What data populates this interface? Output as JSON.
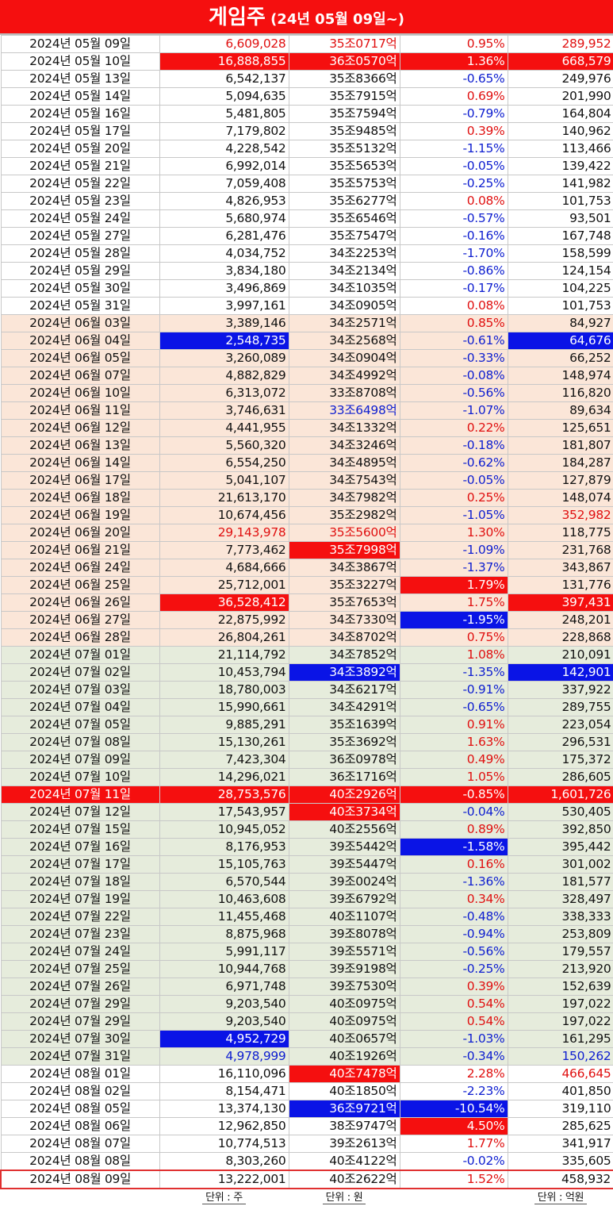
{
  "title": {
    "main": "게임주",
    "sub": " (24년 05월 09일~)"
  },
  "units": {
    "col1": "단위 : 주",
    "col2": "단위 : 원",
    "col4": "단위 : 억원"
  },
  "rows": [
    {
      "date": "2024년 05월 09일",
      "volume": "6,609,028",
      "mcap": "35조0717억",
      "change": "0.95%",
      "amount": "289,952",
      "m": "m5",
      "c1": "red",
      "c2": "red",
      "c3": "red",
      "c4": "red"
    },
    {
      "date": "2024년 05월 10일",
      "volume": "16,888,855",
      "mcap": "36조0570억",
      "change": "1.36%",
      "amount": "668,579",
      "m": "m5",
      "c1": "bgred",
      "c2": "bgred",
      "c3": "bgred",
      "c4": "bgred"
    },
    {
      "date": "2024년 05월 13일",
      "volume": "6,542,137",
      "mcap": "35조8366억",
      "change": "-0.65%",
      "amount": "249,976",
      "m": "m5",
      "c3": "blue"
    },
    {
      "date": "2024년 05월 14일",
      "volume": "5,094,635",
      "mcap": "35조7915억",
      "change": "0.69%",
      "amount": "201,990",
      "m": "m5",
      "c3": "red"
    },
    {
      "date": "2024년 05월 16일",
      "volume": "5,481,805",
      "mcap": "35조7594억",
      "change": "-0.79%",
      "amount": "164,804",
      "m": "m5",
      "c3": "blue"
    },
    {
      "date": "2024년 05월 17일",
      "volume": "7,179,802",
      "mcap": "35조9485억",
      "change": "0.39%",
      "amount": "140,962",
      "m": "m5",
      "c3": "red"
    },
    {
      "date": "2024년 05월 20일",
      "volume": "4,228,542",
      "mcap": "35조5132억",
      "change": "-1.15%",
      "amount": "113,466",
      "m": "m5",
      "c3": "blue"
    },
    {
      "date": "2024년 05월 21일",
      "volume": "6,992,014",
      "mcap": "35조5653억",
      "change": "-0.05%",
      "amount": "139,422",
      "m": "m5",
      "c3": "blue"
    },
    {
      "date": "2024년 05월 22일",
      "volume": "7,059,408",
      "mcap": "35조5753억",
      "change": "-0.25%",
      "amount": "141,982",
      "m": "m5",
      "c3": "blue"
    },
    {
      "date": "2024년 05월 23일",
      "volume": "4,826,953",
      "mcap": "35조6277억",
      "change": "0.08%",
      "amount": "101,753",
      "m": "m5",
      "c3": "red"
    },
    {
      "date": "2024년 05월 24일",
      "volume": "5,680,974",
      "mcap": "35조6546억",
      "change": "-0.57%",
      "amount": "93,501",
      "m": "m5",
      "c3": "blue"
    },
    {
      "date": "2024년 05월 27일",
      "volume": "6,281,476",
      "mcap": "35조7547억",
      "change": "-0.16%",
      "amount": "167,748",
      "m": "m5",
      "c3": "blue"
    },
    {
      "date": "2024년 05월 28일",
      "volume": "4,034,752",
      "mcap": "34조2253억",
      "change": "-1.70%",
      "amount": "158,599",
      "m": "m5",
      "c3": "blue"
    },
    {
      "date": "2024년 05월 29일",
      "volume": "3,834,180",
      "mcap": "34조2134억",
      "change": "-0.86%",
      "amount": "124,154",
      "m": "m5",
      "c3": "blue"
    },
    {
      "date": "2024년 05월 30일",
      "volume": "3,496,869",
      "mcap": "34조1035억",
      "change": "-0.17%",
      "amount": "104,225",
      "m": "m5",
      "c3": "blue"
    },
    {
      "date": "2024년 05월 31일",
      "volume": "3,997,161",
      "mcap": "34조0905억",
      "change": "0.08%",
      "amount": "101,753",
      "m": "m5",
      "c3": "red"
    },
    {
      "date": "2024년 06월 03일",
      "volume": "3,389,146",
      "mcap": "34조2571억",
      "change": "0.85%",
      "amount": "84,927",
      "m": "m6",
      "c3": "red"
    },
    {
      "date": "2024년 06월 04일",
      "volume": "2,548,735",
      "mcap": "34조2568억",
      "change": "-0.61%",
      "amount": "64,676",
      "m": "m6",
      "c1": "bgblue",
      "c3": "blue",
      "c4": "bgblue"
    },
    {
      "date": "2024년 06월 05일",
      "volume": "3,260,089",
      "mcap": "34조0904억",
      "change": "-0.33%",
      "amount": "66,252",
      "m": "m6",
      "c3": "blue"
    },
    {
      "date": "2024년 06월 07일",
      "volume": "4,882,829",
      "mcap": "34조4992억",
      "change": "-0.08%",
      "amount": "148,974",
      "m": "m6",
      "c3": "blue"
    },
    {
      "date": "2024년 06월 10일",
      "volume": "6,313,072",
      "mcap": "33조8708억",
      "change": "-0.56%",
      "amount": "116,820",
      "m": "m6",
      "c3": "blue"
    },
    {
      "date": "2024년 06월 11일",
      "volume": "3,746,631",
      "mcap": "33조6498억",
      "change": "-1.07%",
      "amount": "89,634",
      "m": "m6",
      "c2": "blue",
      "c3": "blue"
    },
    {
      "date": "2024년 06월 12일",
      "volume": "4,441,955",
      "mcap": "34조1332억",
      "change": "0.22%",
      "amount": "125,651",
      "m": "m6",
      "c3": "red"
    },
    {
      "date": "2024년 06월 13일",
      "volume": "5,560,320",
      "mcap": "34조3246억",
      "change": "-0.18%",
      "amount": "181,807",
      "m": "m6",
      "c3": "blue"
    },
    {
      "date": "2024년 06월 14일",
      "volume": "6,554,250",
      "mcap": "34조4895억",
      "change": "-0.62%",
      "amount": "184,287",
      "m": "m6",
      "c3": "blue"
    },
    {
      "date": "2024년 06월 17일",
      "volume": "5,041,107",
      "mcap": "34조7543억",
      "change": "-0.05%",
      "amount": "127,879",
      "m": "m6",
      "c3": "blue"
    },
    {
      "date": "2024년 06월 18일",
      "volume": "21,613,170",
      "mcap": "34조7982억",
      "change": "0.25%",
      "amount": "148,074",
      "m": "m6",
      "c3": "red"
    },
    {
      "date": "2024년 06월 19일",
      "volume": "10,674,456",
      "mcap": "35조2982억",
      "change": "-1.05%",
      "amount": "352,982",
      "m": "m6",
      "c3": "blue",
      "c4": "red"
    },
    {
      "date": "2024년 06월 20일",
      "volume": "29,143,978",
      "mcap": "35조5600억",
      "change": "1.30%",
      "amount": "118,775",
      "m": "m6",
      "c1": "red",
      "c2": "red",
      "c3": "red"
    },
    {
      "date": "2024년 06월 21일",
      "volume": "7,773,462",
      "mcap": "35조7998억",
      "change": "-1.09%",
      "amount": "231,768",
      "m": "m6",
      "c2": "bgred",
      "c3": "blue"
    },
    {
      "date": "2024년 06월 24일",
      "volume": "4,684,666",
      "mcap": "34조3867억",
      "change": "-1.37%",
      "amount": "343,867",
      "m": "m6",
      "c3": "blue"
    },
    {
      "date": "2024년 06월 25일",
      "volume": "25,712,001",
      "mcap": "35조3227억",
      "change": "1.79%",
      "amount": "131,776",
      "m": "m6",
      "c3": "bgred"
    },
    {
      "date": "2024년 06월 26일",
      "volume": "36,528,412",
      "mcap": "35조7653억",
      "change": "1.75%",
      "amount": "397,431",
      "m": "m6",
      "c1": "bgred",
      "c3": "red",
      "c4": "bgred"
    },
    {
      "date": "2024년 06월 27일",
      "volume": "22,875,992",
      "mcap": "34조7330억",
      "change": "-1.95%",
      "amount": "248,201",
      "m": "m6",
      "c3": "bgblue"
    },
    {
      "date": "2024년 06월 28일",
      "volume": "26,804,261",
      "mcap": "34조8702억",
      "change": "0.75%",
      "amount": "228,868",
      "m": "m6",
      "c3": "red"
    },
    {
      "date": "2024년 07월 01일",
      "volume": "21,114,792",
      "mcap": "34조7852억",
      "change": "1.08%",
      "amount": "210,091",
      "m": "m7",
      "c3": "red"
    },
    {
      "date": "2024년 07월 02일",
      "volume": "10,453,794",
      "mcap": "34조3892억",
      "change": "-1.35%",
      "amount": "142,901",
      "m": "m7",
      "c2": "bgblue",
      "c3": "blue",
      "c4": "bgblue"
    },
    {
      "date": "2024년 07월 03일",
      "volume": "18,780,003",
      "mcap": "34조6217억",
      "change": "-0.91%",
      "amount": "337,922",
      "m": "m7",
      "c3": "blue"
    },
    {
      "date": "2024년 07월 04일",
      "volume": "15,990,661",
      "mcap": "34조4291억",
      "change": "-0.65%",
      "amount": "289,755",
      "m": "m7",
      "c3": "blue"
    },
    {
      "date": "2024년 07월 05일",
      "volume": "9,885,291",
      "mcap": "35조1639억",
      "change": "0.91%",
      "amount": "223,054",
      "m": "m7",
      "c3": "red"
    },
    {
      "date": "2024년 07월 08일",
      "volume": "15,130,261",
      "mcap": "35조3692억",
      "change": "1.63%",
      "amount": "296,531",
      "m": "m7",
      "c3": "red"
    },
    {
      "date": "2024년 07월 09일",
      "volume": "7,423,304",
      "mcap": "36조0978억",
      "change": "0.49%",
      "amount": "175,372",
      "m": "m7",
      "c3": "red"
    },
    {
      "date": "2024년 07월 10일",
      "volume": "14,296,021",
      "mcap": "36조1716억",
      "change": "1.05%",
      "amount": "286,605",
      "m": "m7",
      "c3": "red"
    },
    {
      "date": "2024년 07월 11일",
      "volume": "28,753,576",
      "mcap": "40조2926억",
      "change": "-0.85%",
      "amount": "1,601,726",
      "m": "m7",
      "hl": true
    },
    {
      "date": "2024년 07월 12일",
      "volume": "17,543,957",
      "mcap": "40조3734억",
      "change": "-0.04%",
      "amount": "530,405",
      "m": "m7",
      "c2": "bgred",
      "c3": "blue"
    },
    {
      "date": "2024년 07월 15일",
      "volume": "10,945,052",
      "mcap": "40조2556억",
      "change": "0.89%",
      "amount": "392,850",
      "m": "m7",
      "c3": "red"
    },
    {
      "date": "2024년 07월 16일",
      "volume": "8,176,953",
      "mcap": "39조5442억",
      "change": "-1.58%",
      "amount": "395,442",
      "m": "m7",
      "c3": "bgblue"
    },
    {
      "date": "2024년 07월 17일",
      "volume": "15,105,763",
      "mcap": "39조5447억",
      "change": "0.16%",
      "amount": "301,002",
      "m": "m7",
      "c3": "red"
    },
    {
      "date": "2024년 07월 18일",
      "volume": "6,570,544",
      "mcap": "39조0024억",
      "change": "-1.36%",
      "amount": "181,577",
      "m": "m7",
      "c3": "blue"
    },
    {
      "date": "2024년 07월 19일",
      "volume": "10,463,608",
      "mcap": "39조6792억",
      "change": "0.34%",
      "amount": "328,497",
      "m": "m7",
      "c3": "red"
    },
    {
      "date": "2024년 07월 22일",
      "volume": "11,455,468",
      "mcap": "40조1107억",
      "change": "-0.48%",
      "amount": "338,333",
      "m": "m7",
      "c3": "blue"
    },
    {
      "date": "2024년 07월 23일",
      "volume": "8,875,968",
      "mcap": "39조8078억",
      "change": "-0.94%",
      "amount": "253,809",
      "m": "m7",
      "c3": "blue"
    },
    {
      "date": "2024년 07월 24일",
      "volume": "5,991,117",
      "mcap": "39조5571억",
      "change": "-0.56%",
      "amount": "179,557",
      "m": "m7",
      "c3": "blue"
    },
    {
      "date": "2024년 07월 25일",
      "volume": "10,944,768",
      "mcap": "39조9198억",
      "change": "-0.25%",
      "amount": "213,920",
      "m": "m7",
      "c3": "blue"
    },
    {
      "date": "2024년 07월 26일",
      "volume": "6,971,748",
      "mcap": "39조7530억",
      "change": "0.39%",
      "amount": "152,639",
      "m": "m7",
      "c3": "red"
    },
    {
      "date": "2024년 07월 29일",
      "volume": "9,203,540",
      "mcap": "40조0975억",
      "change": "0.54%",
      "amount": "197,022",
      "m": "m7",
      "c3": "red"
    },
    {
      "date": "2024년 07월 29일",
      "volume": "9,203,540",
      "mcap": "40조0975억",
      "change": "0.54%",
      "amount": "197,022",
      "m": "m7",
      "c3": "red"
    },
    {
      "date": "2024년 07월 30일",
      "volume": "4,952,729",
      "mcap": "40조0657억",
      "change": "-1.03%",
      "amount": "161,295",
      "m": "m7",
      "c1": "bgblue",
      "c3": "blue"
    },
    {
      "date": "2024년 07월 31일",
      "volume": "4,978,999",
      "mcap": "40조1926억",
      "change": "-0.34%",
      "amount": "150,262",
      "m": "m7",
      "c1": "blue",
      "c3": "blue",
      "c4": "blue"
    },
    {
      "date": "2024년 08월 01일",
      "volume": "16,110,096",
      "mcap": "40조7478억",
      "change": "2.28%",
      "amount": "466,645",
      "m": "m8",
      "c2": "bgred",
      "c3": "red",
      "c4": "red"
    },
    {
      "date": "2024년 08월 02일",
      "volume": "8,154,471",
      "mcap": "40조1850억",
      "change": "-2.23%",
      "amount": "401,850",
      "m": "m8",
      "c3": "blue"
    },
    {
      "date": "2024년 08월 05일",
      "volume": "13,374,130",
      "mcap": "36조9721억",
      "change": "-10.54%",
      "amount": "319,110",
      "m": "m8",
      "c2": "bgblue",
      "c3": "bgblue"
    },
    {
      "date": "2024년 08월 06일",
      "volume": "12,962,850",
      "mcap": "38조9747억",
      "change": "4.50%",
      "amount": "285,625",
      "m": "m8",
      "c3": "bgred"
    },
    {
      "date": "2024년 08월 07일",
      "volume": "10,774,513",
      "mcap": "39조2613억",
      "change": "1.77%",
      "amount": "341,917",
      "m": "m8",
      "c3": "red"
    },
    {
      "date": "2024년 08월 08일",
      "volume": "8,303,260",
      "mcap": "40조4122억",
      "change": "-0.02%",
      "amount": "335,605",
      "m": "m8",
      "c3": "blue"
    },
    {
      "date": "2024년 08월 09일",
      "volume": "13,222,001",
      "mcap": "40조2622억",
      "change": "1.52%",
      "amount": "458,932",
      "m": "m8",
      "c3": "red",
      "box": true
    }
  ]
}
